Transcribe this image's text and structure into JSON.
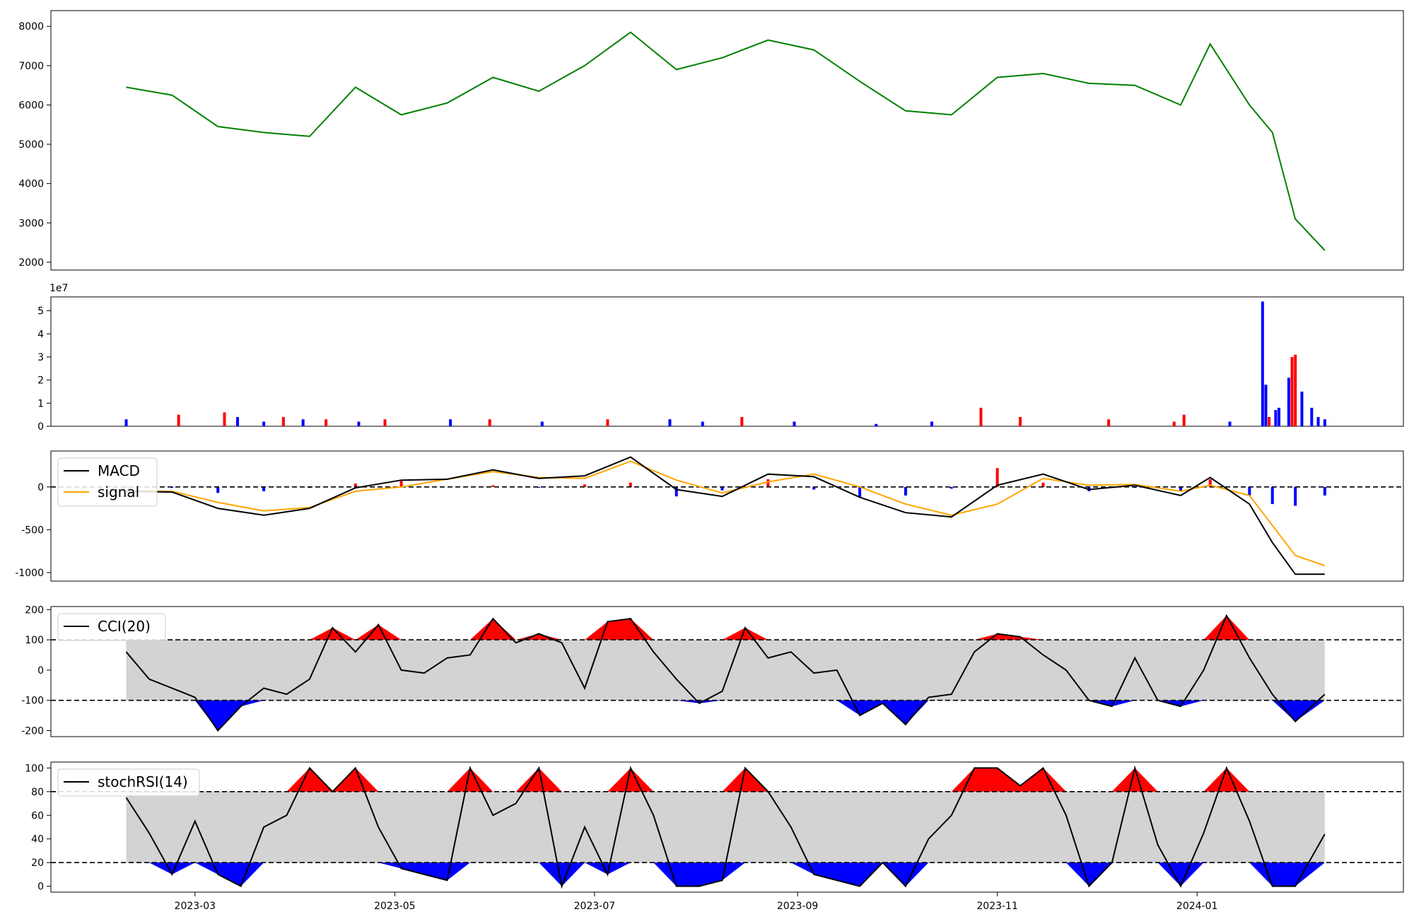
{
  "chart_data": [
    {
      "type": "line",
      "panel": "price",
      "title": "",
      "xlabel": "",
      "ylabel": "",
      "ylim": [
        1800,
        8400
      ],
      "yticks": [
        2000,
        3000,
        4000,
        5000,
        6000,
        7000,
        8000
      ],
      "colors": {
        "line": "#008000"
      },
      "x": [
        "2023-02-08",
        "2023-02-22",
        "2023-03-08",
        "2023-03-22",
        "2023-04-05",
        "2023-04-19",
        "2023-05-03",
        "2023-05-17",
        "2023-05-31",
        "2023-06-14",
        "2023-06-28",
        "2023-07-12",
        "2023-07-26",
        "2023-08-09",
        "2023-08-23",
        "2023-09-06",
        "2023-09-20",
        "2023-10-04",
        "2023-10-18",
        "2023-11-01",
        "2023-11-15",
        "2023-11-29",
        "2023-12-13",
        "2023-12-27",
        "2024-01-05",
        "2024-01-17",
        "2024-01-24",
        "2024-01-31",
        "2024-02-09"
      ],
      "values": [
        6450,
        6250,
        5450,
        5300,
        5200,
        6450,
        5750,
        6050,
        6700,
        6350,
        7000,
        7850,
        6900,
        7200,
        7650,
        7400,
        6600,
        5850,
        5750,
        6700,
        6800,
        6550,
        6500,
        6000,
        7550,
        6000,
        5300,
        3100,
        2300
      ]
    },
    {
      "type": "bar",
      "panel": "volume",
      "scale_label": "1e7",
      "ylim": [
        0,
        5.6
      ],
      "yticks": [
        0,
        1,
        2,
        3,
        4,
        5
      ],
      "colors": {
        "up": "#ff0000",
        "down": "#0000ff"
      },
      "series": [
        {
          "x": "2023-02-08",
          "value": 0.3,
          "dir": "down"
        },
        {
          "x": "2023-02-24",
          "value": 0.5,
          "dir": "up"
        },
        {
          "x": "2023-03-10",
          "value": 0.6,
          "dir": "up"
        },
        {
          "x": "2023-03-14",
          "value": 0.4,
          "dir": "down"
        },
        {
          "x": "2023-03-22",
          "value": 0.2,
          "dir": "down"
        },
        {
          "x": "2023-03-28",
          "value": 0.4,
          "dir": "up"
        },
        {
          "x": "2023-04-03",
          "value": 0.3,
          "dir": "down"
        },
        {
          "x": "2023-04-10",
          "value": 0.3,
          "dir": "up"
        },
        {
          "x": "2023-04-20",
          "value": 0.2,
          "dir": "down"
        },
        {
          "x": "2023-04-28",
          "value": 0.3,
          "dir": "up"
        },
        {
          "x": "2023-05-18",
          "value": 0.3,
          "dir": "down"
        },
        {
          "x": "2023-05-30",
          "value": 0.3,
          "dir": "up"
        },
        {
          "x": "2023-06-15",
          "value": 0.2,
          "dir": "down"
        },
        {
          "x": "2023-07-05",
          "value": 0.3,
          "dir": "up"
        },
        {
          "x": "2023-07-24",
          "value": 0.3,
          "dir": "down"
        },
        {
          "x": "2023-08-03",
          "value": 0.2,
          "dir": "down"
        },
        {
          "x": "2023-08-15",
          "value": 0.4,
          "dir": "up"
        },
        {
          "x": "2023-08-31",
          "value": 0.2,
          "dir": "down"
        },
        {
          "x": "2023-09-25",
          "value": 0.1,
          "dir": "down"
        },
        {
          "x": "2023-10-12",
          "value": 0.2,
          "dir": "down"
        },
        {
          "x": "2023-10-27",
          "value": 0.8,
          "dir": "up"
        },
        {
          "x": "2023-11-08",
          "value": 0.4,
          "dir": "up"
        },
        {
          "x": "2023-12-05",
          "value": 0.3,
          "dir": "up"
        },
        {
          "x": "2023-12-25",
          "value": 0.2,
          "dir": "up"
        },
        {
          "x": "2023-12-28",
          "value": 0.5,
          "dir": "up"
        },
        {
          "x": "2024-01-11",
          "value": 0.2,
          "dir": "down"
        },
        {
          "x": "2024-01-21",
          "value": 5.4,
          "dir": "down"
        },
        {
          "x": "2024-01-22",
          "value": 1.8,
          "dir": "down"
        },
        {
          "x": "2024-01-23",
          "value": 0.4,
          "dir": "up"
        },
        {
          "x": "2024-01-25",
          "value": 0.7,
          "dir": "down"
        },
        {
          "x": "2024-01-26",
          "value": 0.8,
          "dir": "down"
        },
        {
          "x": "2024-01-29",
          "value": 2.1,
          "dir": "down"
        },
        {
          "x": "2024-01-30",
          "value": 3.0,
          "dir": "up"
        },
        {
          "x": "2024-01-31",
          "value": 3.1,
          "dir": "up"
        },
        {
          "x": "2024-02-02",
          "value": 1.5,
          "dir": "down"
        },
        {
          "x": "2024-02-05",
          "value": 0.8,
          "dir": "down"
        },
        {
          "x": "2024-02-07",
          "value": 0.4,
          "dir": "down"
        },
        {
          "x": "2024-02-09",
          "value": 0.3,
          "dir": "down"
        }
      ]
    },
    {
      "type": "line",
      "panel": "macd",
      "ylim": [
        -1100,
        420
      ],
      "yticks": [
        -1000,
        -500,
        0
      ],
      "reference_lines": [
        0
      ],
      "legend": [
        "MACD",
        "signal"
      ],
      "legend_position": "top-left",
      "colors": {
        "macd": "#000000",
        "signal": "#ffa500",
        "hist_up": "#ff0000",
        "hist_down": "#0000ff"
      },
      "x": [
        "2023-02-08",
        "2023-02-22",
        "2023-03-08",
        "2023-03-22",
        "2023-04-05",
        "2023-04-19",
        "2023-05-03",
        "2023-05-17",
        "2023-05-31",
        "2023-06-14",
        "2023-06-28",
        "2023-07-12",
        "2023-07-26",
        "2023-08-09",
        "2023-08-23",
        "2023-09-06",
        "2023-09-20",
        "2023-10-04",
        "2023-10-18",
        "2023-11-01",
        "2023-11-15",
        "2023-11-29",
        "2023-12-13",
        "2023-12-27",
        "2024-01-05",
        "2024-01-17",
        "2024-01-24",
        "2024-01-31",
        "2024-02-09"
      ],
      "series": [
        {
          "name": "MACD",
          "values": [
            -50,
            -60,
            -250,
            -330,
            -250,
            -10,
            80,
            90,
            200,
            100,
            130,
            350,
            -30,
            -110,
            150,
            120,
            -120,
            -300,
            -350,
            20,
            150,
            -30,
            20,
            -100,
            110,
            -200,
            -650,
            -1020,
            -1020
          ]
        },
        {
          "name": "signal",
          "values": [
            -40,
            -50,
            -180,
            -280,
            -240,
            -50,
            0,
            90,
            180,
            110,
            100,
            300,
            80,
            -70,
            60,
            150,
            0,
            -200,
            -330,
            -200,
            100,
            20,
            30,
            -50,
            20,
            -100,
            -450,
            -800,
            -920
          ]
        },
        {
          "name": "histogram",
          "values": [
            -10,
            -10,
            -70,
            -50,
            -10,
            40,
            80,
            0,
            20,
            -10,
            30,
            50,
            -110,
            -40,
            90,
            -30,
            -120,
            -100,
            -20,
            220,
            50,
            -50,
            -10,
            -50,
            90,
            -100,
            -200,
            -220,
            -100
          ]
        }
      ]
    },
    {
      "type": "line",
      "panel": "cci",
      "ylim": [
        -220,
        210
      ],
      "yticks": [
        -200,
        -100,
        0,
        100,
        200
      ],
      "band": [
        -100,
        100
      ],
      "reference_lines": [
        100,
        -100
      ],
      "legend": [
        "CCI(20)"
      ],
      "legend_position": "top-left",
      "colors": {
        "line": "#000000",
        "band": "#d3d3d3",
        "over": "#ff0000",
        "under": "#0000ff"
      },
      "x": [
        "2023-02-08",
        "2023-02-15",
        "2023-02-22",
        "2023-03-01",
        "2023-03-08",
        "2023-03-15",
        "2023-03-22",
        "2023-03-29",
        "2023-04-05",
        "2023-04-12",
        "2023-04-19",
        "2023-04-26",
        "2023-05-03",
        "2023-05-10",
        "2023-05-17",
        "2023-05-24",
        "2023-05-31",
        "2023-06-07",
        "2023-06-14",
        "2023-06-21",
        "2023-06-28",
        "2023-07-05",
        "2023-07-12",
        "2023-07-19",
        "2023-07-26",
        "2023-08-02",
        "2023-08-09",
        "2023-08-16",
        "2023-08-23",
        "2023-08-30",
        "2023-09-06",
        "2023-09-13",
        "2023-09-20",
        "2023-09-27",
        "2023-10-04",
        "2023-10-11",
        "2023-10-18",
        "2023-10-25",
        "2023-11-01",
        "2023-11-08",
        "2023-11-15",
        "2023-11-22",
        "2023-11-29",
        "2023-12-06",
        "2023-12-13",
        "2023-12-20",
        "2023-12-27",
        "2024-01-03",
        "2024-01-10",
        "2024-01-17",
        "2024-01-24",
        "2024-01-31",
        "2024-02-09"
      ],
      "values": [
        60,
        -30,
        -60,
        -90,
        -200,
        -120,
        -60,
        -80,
        -30,
        140,
        60,
        150,
        0,
        -10,
        40,
        50,
        170,
        90,
        120,
        90,
        -60,
        160,
        170,
        60,
        -30,
        -110,
        -70,
        140,
        40,
        60,
        -10,
        0,
        -150,
        -110,
        -180,
        -90,
        -80,
        60,
        120,
        110,
        50,
        0,
        -100,
        -120,
        40,
        -100,
        -120,
        0,
        180,
        40,
        -80,
        -170,
        -80
      ]
    },
    {
      "type": "line",
      "panel": "stochrsi",
      "ylim": [
        -5,
        105
      ],
      "yticks": [
        0,
        20,
        40,
        60,
        80,
        100
      ],
      "band": [
        20,
        80
      ],
      "reference_lines": [
        80,
        20
      ],
      "legend": [
        "stochRSI(14)"
      ],
      "legend_position": "top-left",
      "colors": {
        "line": "#000000",
        "band": "#d3d3d3",
        "over": "#ff0000",
        "under": "#0000ff"
      },
      "x": [
        "2023-02-08",
        "2023-02-15",
        "2023-02-22",
        "2023-03-01",
        "2023-03-08",
        "2023-03-15",
        "2023-03-22",
        "2023-03-29",
        "2023-04-05",
        "2023-04-12",
        "2023-04-19",
        "2023-04-26",
        "2023-05-03",
        "2023-05-10",
        "2023-05-17",
        "2023-05-24",
        "2023-05-31",
        "2023-06-07",
        "2023-06-14",
        "2023-06-21",
        "2023-06-28",
        "2023-07-05",
        "2023-07-12",
        "2023-07-19",
        "2023-07-26",
        "2023-08-02",
        "2023-08-09",
        "2023-08-16",
        "2023-08-23",
        "2023-08-30",
        "2023-09-06",
        "2023-09-13",
        "2023-09-20",
        "2023-09-27",
        "2023-10-04",
        "2023-10-11",
        "2023-10-18",
        "2023-10-25",
        "2023-11-01",
        "2023-11-08",
        "2023-11-15",
        "2023-11-22",
        "2023-11-29",
        "2023-12-06",
        "2023-12-13",
        "2023-12-20",
        "2023-12-27",
        "2024-01-03",
        "2024-01-10",
        "2024-01-17",
        "2024-01-24",
        "2024-01-31",
        "2024-02-09"
      ],
      "values": [
        75,
        45,
        10,
        55,
        10,
        0,
        50,
        60,
        100,
        80,
        100,
        50,
        15,
        10,
        5,
        100,
        60,
        70,
        100,
        0,
        50,
        10,
        100,
        60,
        0,
        0,
        5,
        100,
        80,
        50,
        10,
        5,
        0,
        20,
        0,
        40,
        60,
        100,
        100,
        85,
        100,
        60,
        0,
        20,
        100,
        35,
        0,
        45,
        100,
        55,
        0,
        0,
        44
      ]
    }
  ],
  "x_axis": {
    "tick_labels": [
      "2023-03",
      "2023-05",
      "2023-07",
      "2023-09",
      "2023-11",
      "2024-01"
    ],
    "range": [
      "2023-01-16",
      "2024-03-04"
    ]
  }
}
